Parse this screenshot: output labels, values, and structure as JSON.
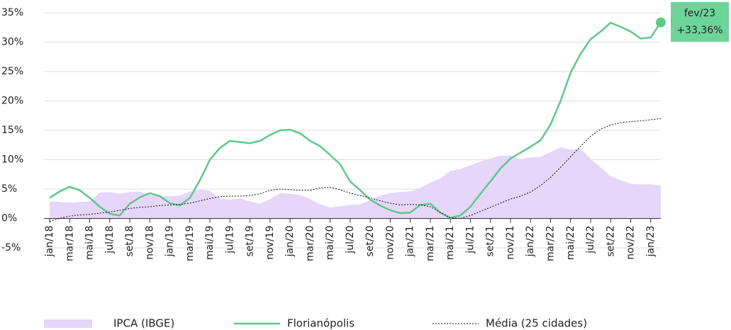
{
  "chart_data": {
    "type": "line",
    "categories": [
      "jan/18",
      null,
      "mar/18",
      null,
      "mai/18",
      null,
      "jul/18",
      null,
      "set/18",
      null,
      "nov/18",
      null,
      "jan/19",
      null,
      "mar/19",
      null,
      "mai/19",
      null,
      "jul/19",
      null,
      "set/19",
      null,
      "nov/19",
      null,
      "jan/20",
      null,
      "mar/20",
      null,
      "mai/20",
      null,
      "jul/20",
      null,
      "set/20",
      null,
      "nov/20",
      null,
      "jan/21",
      null,
      "mar/21",
      null,
      "mai/21",
      null,
      "jul/21",
      null,
      "set/21",
      null,
      "nov/21",
      null,
      "jan/22",
      null,
      "mar/22",
      null,
      "mai/22",
      null,
      "jul/22",
      null,
      "set/22",
      null,
      "nov/22",
      null,
      "jan/23",
      null
    ],
    "series": [
      {
        "name": "IPCA (IBGE)",
        "kind": "area",
        "color": "#e6d6fa",
        "values": [
          2.9,
          2.8,
          2.7,
          2.8,
          2.9,
          4.4,
          4.5,
          4.2,
          4.5,
          4.6,
          4.0,
          3.8,
          3.8,
          3.9,
          4.6,
          4.9,
          4.7,
          3.4,
          3.2,
          3.4,
          2.9,
          2.5,
          3.3,
          4.3,
          4.2,
          4.0,
          3.3,
          2.4,
          1.9,
          2.1,
          2.3,
          2.4,
          3.1,
          3.9,
          4.3,
          4.5,
          4.6,
          5.2,
          6.1,
          6.8,
          8.1,
          8.4,
          9.0,
          9.7,
          10.2,
          10.7,
          10.7,
          10.1,
          10.4,
          10.5,
          11.3,
          12.1,
          11.7,
          11.9,
          10.1,
          8.7,
          7.2,
          6.5,
          5.9,
          5.8,
          5.8,
          5.6
        ]
      },
      {
        "name": "Florianópolis",
        "kind": "line",
        "color": "#5ec98a",
        "values": [
          3.5,
          4.6,
          5.4,
          4.8,
          3.5,
          2.0,
          0.8,
          0.5,
          2.5,
          3.6,
          4.3,
          3.8,
          2.6,
          2.2,
          3.5,
          6.5,
          10.0,
          12.0,
          13.2,
          13.0,
          12.8,
          13.2,
          14.2,
          15.0,
          15.1,
          14.5,
          13.2,
          12.3,
          10.8,
          9.2,
          6.3,
          4.8,
          3.2,
          2.2,
          1.4,
          0.9,
          1.0,
          2.3,
          2.5,
          1.0,
          0.1,
          0.5,
          2.0,
          4.2,
          6.3,
          8.5,
          10.2,
          11.2,
          12.2,
          13.3,
          16.0,
          20.0,
          24.8,
          28.0,
          30.5,
          31.8,
          33.3,
          32.6,
          31.8,
          30.6,
          30.8,
          33.36
        ],
        "value_labels": [
          null,
          null,
          null,
          null,
          null,
          null,
          null,
          null,
          null,
          null,
          null,
          null,
          null,
          null,
          null,
          null,
          null,
          null,
          null,
          null,
          null,
          null,
          null,
          null,
          null,
          null,
          null,
          null,
          null,
          null,
          null,
          null,
          null,
          null,
          null,
          null,
          null,
          null,
          null,
          null,
          null,
          null,
          null,
          null,
          null,
          null,
          null,
          null,
          null,
          null,
          null,
          null,
          null,
          null,
          null,
          null,
          null,
          null,
          null,
          null,
          null,
          "+33,36%"
        ]
      },
      {
        "name": "Média (25 cidades)",
        "kind": "dotted",
        "color": "#111111",
        "values": [
          -0.5,
          0.0,
          0.4,
          0.6,
          0.7,
          0.9,
          1.1,
          1.4,
          1.7,
          1.9,
          2.0,
          2.2,
          2.3,
          2.4,
          2.6,
          3.0,
          3.4,
          3.7,
          3.8,
          3.8,
          3.9,
          4.2,
          4.8,
          5.0,
          4.9,
          4.8,
          4.8,
          5.2,
          5.3,
          4.9,
          4.3,
          3.9,
          3.5,
          3.0,
          2.6,
          2.3,
          2.4,
          2.3,
          2.0,
          1.0,
          0.1,
          0.0,
          0.5,
          1.2,
          1.9,
          2.6,
          3.3,
          3.8,
          4.5,
          5.6,
          7.0,
          8.7,
          10.5,
          12.3,
          14.0,
          15.2,
          15.9,
          16.3,
          16.5,
          16.6,
          16.8,
          17.0
        ]
      }
    ],
    "annotation": "fev/23",
    "annotation_color": "#6fd49a",
    "ylim": [
      -5,
      35
    ],
    "yticks": [
      {
        "value": -5,
        "label": "-5%"
      },
      {
        "value": 0,
        "label": "0%"
      },
      {
        "value": 5,
        "label": "5%"
      },
      {
        "value": 10,
        "label": "10%"
      },
      {
        "value": 15,
        "label": "15%"
      },
      {
        "value": 20,
        "label": "20%"
      },
      {
        "value": 25,
        "label": "25%"
      },
      {
        "value": 30,
        "label": "30%"
      },
      {
        "value": 35,
        "label": "35%"
      }
    ],
    "grid": true,
    "legend": "bottom"
  }
}
